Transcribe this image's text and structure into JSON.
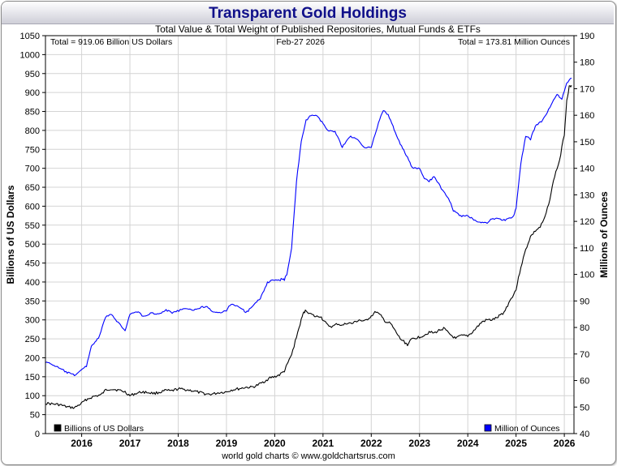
{
  "header": {
    "title": "Transparent Gold Holdings"
  },
  "footer": {
    "credit": "world gold charts © www.goldchartsrus.com"
  },
  "chart_data": {
    "type": "line",
    "subtitle": "Total Value & Total Weight of Published Repositories, Mutual Funds & ETFs",
    "date_label": "Feb-27  2026",
    "total_value_label": "Total = 919.06 Billion US Dollars",
    "total_weight_label": "Total = 173.81 Million Ounces",
    "ylabel_left": "Billions of US Dollars",
    "ylabel_right": "Millions of Ounces",
    "ylim_left": [
      0,
      1050
    ],
    "ylim_right": [
      40,
      190
    ],
    "yticks_left": [
      "0",
      "50",
      "100",
      "150",
      "200",
      "250",
      "300",
      "350",
      "400",
      "450",
      "500",
      "550",
      "600",
      "650",
      "700",
      "750",
      "800",
      "850",
      "900",
      "950",
      "1000",
      "1050"
    ],
    "yticks_right": [
      "40",
      "50",
      "60",
      "70",
      "80",
      "90",
      "100",
      "110",
      "120",
      "130",
      "140",
      "150",
      "160",
      "170",
      "180",
      "190"
    ],
    "xlim": [
      2015.25,
      2026.2
    ],
    "x_tick_labels": [
      "2016",
      "2017",
      "2018",
      "2019",
      "2020",
      "2021",
      "2022",
      "2023",
      "2024",
      "2025",
      "2026"
    ],
    "legend": [
      {
        "name": "Billions of US Dollars",
        "color": "#000000"
      },
      {
        "name": "Million of Ounces",
        "color": "#0000ff"
      }
    ],
    "series": [
      {
        "name": "Billions of US Dollars",
        "axis": "left",
        "color": "#000000",
        "x": [
          2015.25,
          2015.4,
          2015.55,
          2015.7,
          2015.85,
          2016.0,
          2016.1,
          2016.25,
          2016.4,
          2016.5,
          2016.6,
          2016.75,
          2016.9,
          2017.0,
          2017.1,
          2017.25,
          2017.4,
          2017.5,
          2017.65,
          2017.75,
          2017.85,
          2018.0,
          2018.15,
          2018.3,
          2018.45,
          2018.6,
          2018.7,
          2018.85,
          2019.0,
          2019.1,
          2019.25,
          2019.4,
          2019.5,
          2019.6,
          2019.75,
          2019.9,
          2020.0,
          2020.1,
          2020.2,
          2020.25,
          2020.35,
          2020.45,
          2020.55,
          2020.6,
          2020.65,
          2020.75,
          2020.85,
          2020.95,
          2021.0,
          2021.1,
          2021.2,
          2021.3,
          2021.4,
          2021.5,
          2021.6,
          2021.75,
          2021.85,
          2022.0,
          2022.1,
          2022.2,
          2022.3,
          2022.4,
          2022.5,
          2022.6,
          2022.7,
          2022.75,
          2022.85,
          2023.0,
          2023.1,
          2023.2,
          2023.3,
          2023.4,
          2023.5,
          2023.6,
          2023.75,
          2023.85,
          2024.0,
          2024.1,
          2024.2,
          2024.3,
          2024.4,
          2024.5,
          2024.6,
          2024.75,
          2024.85,
          2025.0,
          2025.1,
          2025.2,
          2025.3,
          2025.4,
          2025.5,
          2025.6,
          2025.7,
          2025.8,
          2025.9,
          2026.0,
          2026.05,
          2026.1,
          2026.15
        ],
        "values": [
          80,
          78,
          76,
          70,
          68,
          80,
          90,
          98,
          102,
          115,
          118,
          115,
          110,
          100,
          105,
          110,
          108,
          106,
          110,
          114,
          112,
          118,
          116,
          113,
          108,
          104,
          104,
          108,
          110,
          115,
          118,
          122,
          122,
          125,
          135,
          147,
          150,
          155,
          165,
          180,
          208,
          255,
          300,
          320,
          325,
          315,
          308,
          310,
          300,
          285,
          282,
          290,
          285,
          292,
          290,
          300,
          295,
          310,
          322,
          310,
          295,
          290,
          270,
          250,
          240,
          235,
          250,
          255,
          260,
          268,
          265,
          272,
          278,
          265,
          250,
          258,
          258,
          268,
          282,
          295,
          300,
          300,
          305,
          320,
          345,
          380,
          440,
          485,
          520,
          535,
          545,
          570,
          620,
          680,
          720,
          790,
          880,
          915,
          919
        ]
      },
      {
        "name": "Million of Ounces",
        "axis": "right",
        "color": "#0000ff",
        "x": [
          2015.25,
          2015.4,
          2015.55,
          2015.7,
          2015.85,
          2016.0,
          2016.1,
          2016.2,
          2016.35,
          2016.5,
          2016.6,
          2016.75,
          2016.9,
          2017.0,
          2017.15,
          2017.3,
          2017.45,
          2017.6,
          2017.75,
          2017.9,
          2018.1,
          2018.3,
          2018.45,
          2018.6,
          2018.75,
          2018.9,
          2019.0,
          2019.1,
          2019.3,
          2019.4,
          2019.55,
          2019.7,
          2019.85,
          2020.0,
          2020.1,
          2020.15,
          2020.2,
          2020.25,
          2020.35,
          2020.45,
          2020.55,
          2020.65,
          2020.75,
          2020.85,
          2021.0,
          2021.1,
          2021.25,
          2021.4,
          2021.55,
          2021.7,
          2021.85,
          2022.0,
          2022.15,
          2022.25,
          2022.35,
          2022.45,
          2022.55,
          2022.7,
          2022.85,
          2023.0,
          2023.1,
          2023.2,
          2023.3,
          2023.4,
          2023.5,
          2023.6,
          2023.7,
          2023.85,
          2024.0,
          2024.1,
          2024.2,
          2024.3,
          2024.4,
          2024.5,
          2024.6,
          2024.75,
          2024.85,
          2024.95,
          2025.0,
          2025.1,
          2025.2,
          2025.3,
          2025.4,
          2025.55,
          2025.7,
          2025.85,
          2025.95,
          2026.05,
          2026.15
        ],
        "values": [
          67,
          66,
          64.5,
          63,
          62,
          64,
          65.5,
          73,
          76,
          84,
          85,
          82,
          79,
          85,
          86,
          84,
          85.5,
          85,
          86.5,
          85.5,
          87,
          86.5,
          87.5,
          88,
          85.5,
          85.5,
          86.5,
          89,
          87.5,
          85.5,
          88,
          91,
          97,
          98,
          97.5,
          98.5,
          98,
          100,
          110,
          135,
          150,
          158,
          160,
          160,
          157,
          154,
          154,
          148,
          152,
          151,
          148,
          148,
          157,
          162,
          160,
          156,
          151,
          146,
          140,
          140,
          136,
          135,
          137,
          134,
          131,
          129,
          124,
          122,
          122,
          121,
          120,
          119.5,
          119.5,
          121,
          121,
          120.5,
          121,
          122,
          125,
          142,
          152,
          151,
          156,
          158,
          163,
          168,
          166,
          172,
          174
        ]
      }
    ]
  }
}
